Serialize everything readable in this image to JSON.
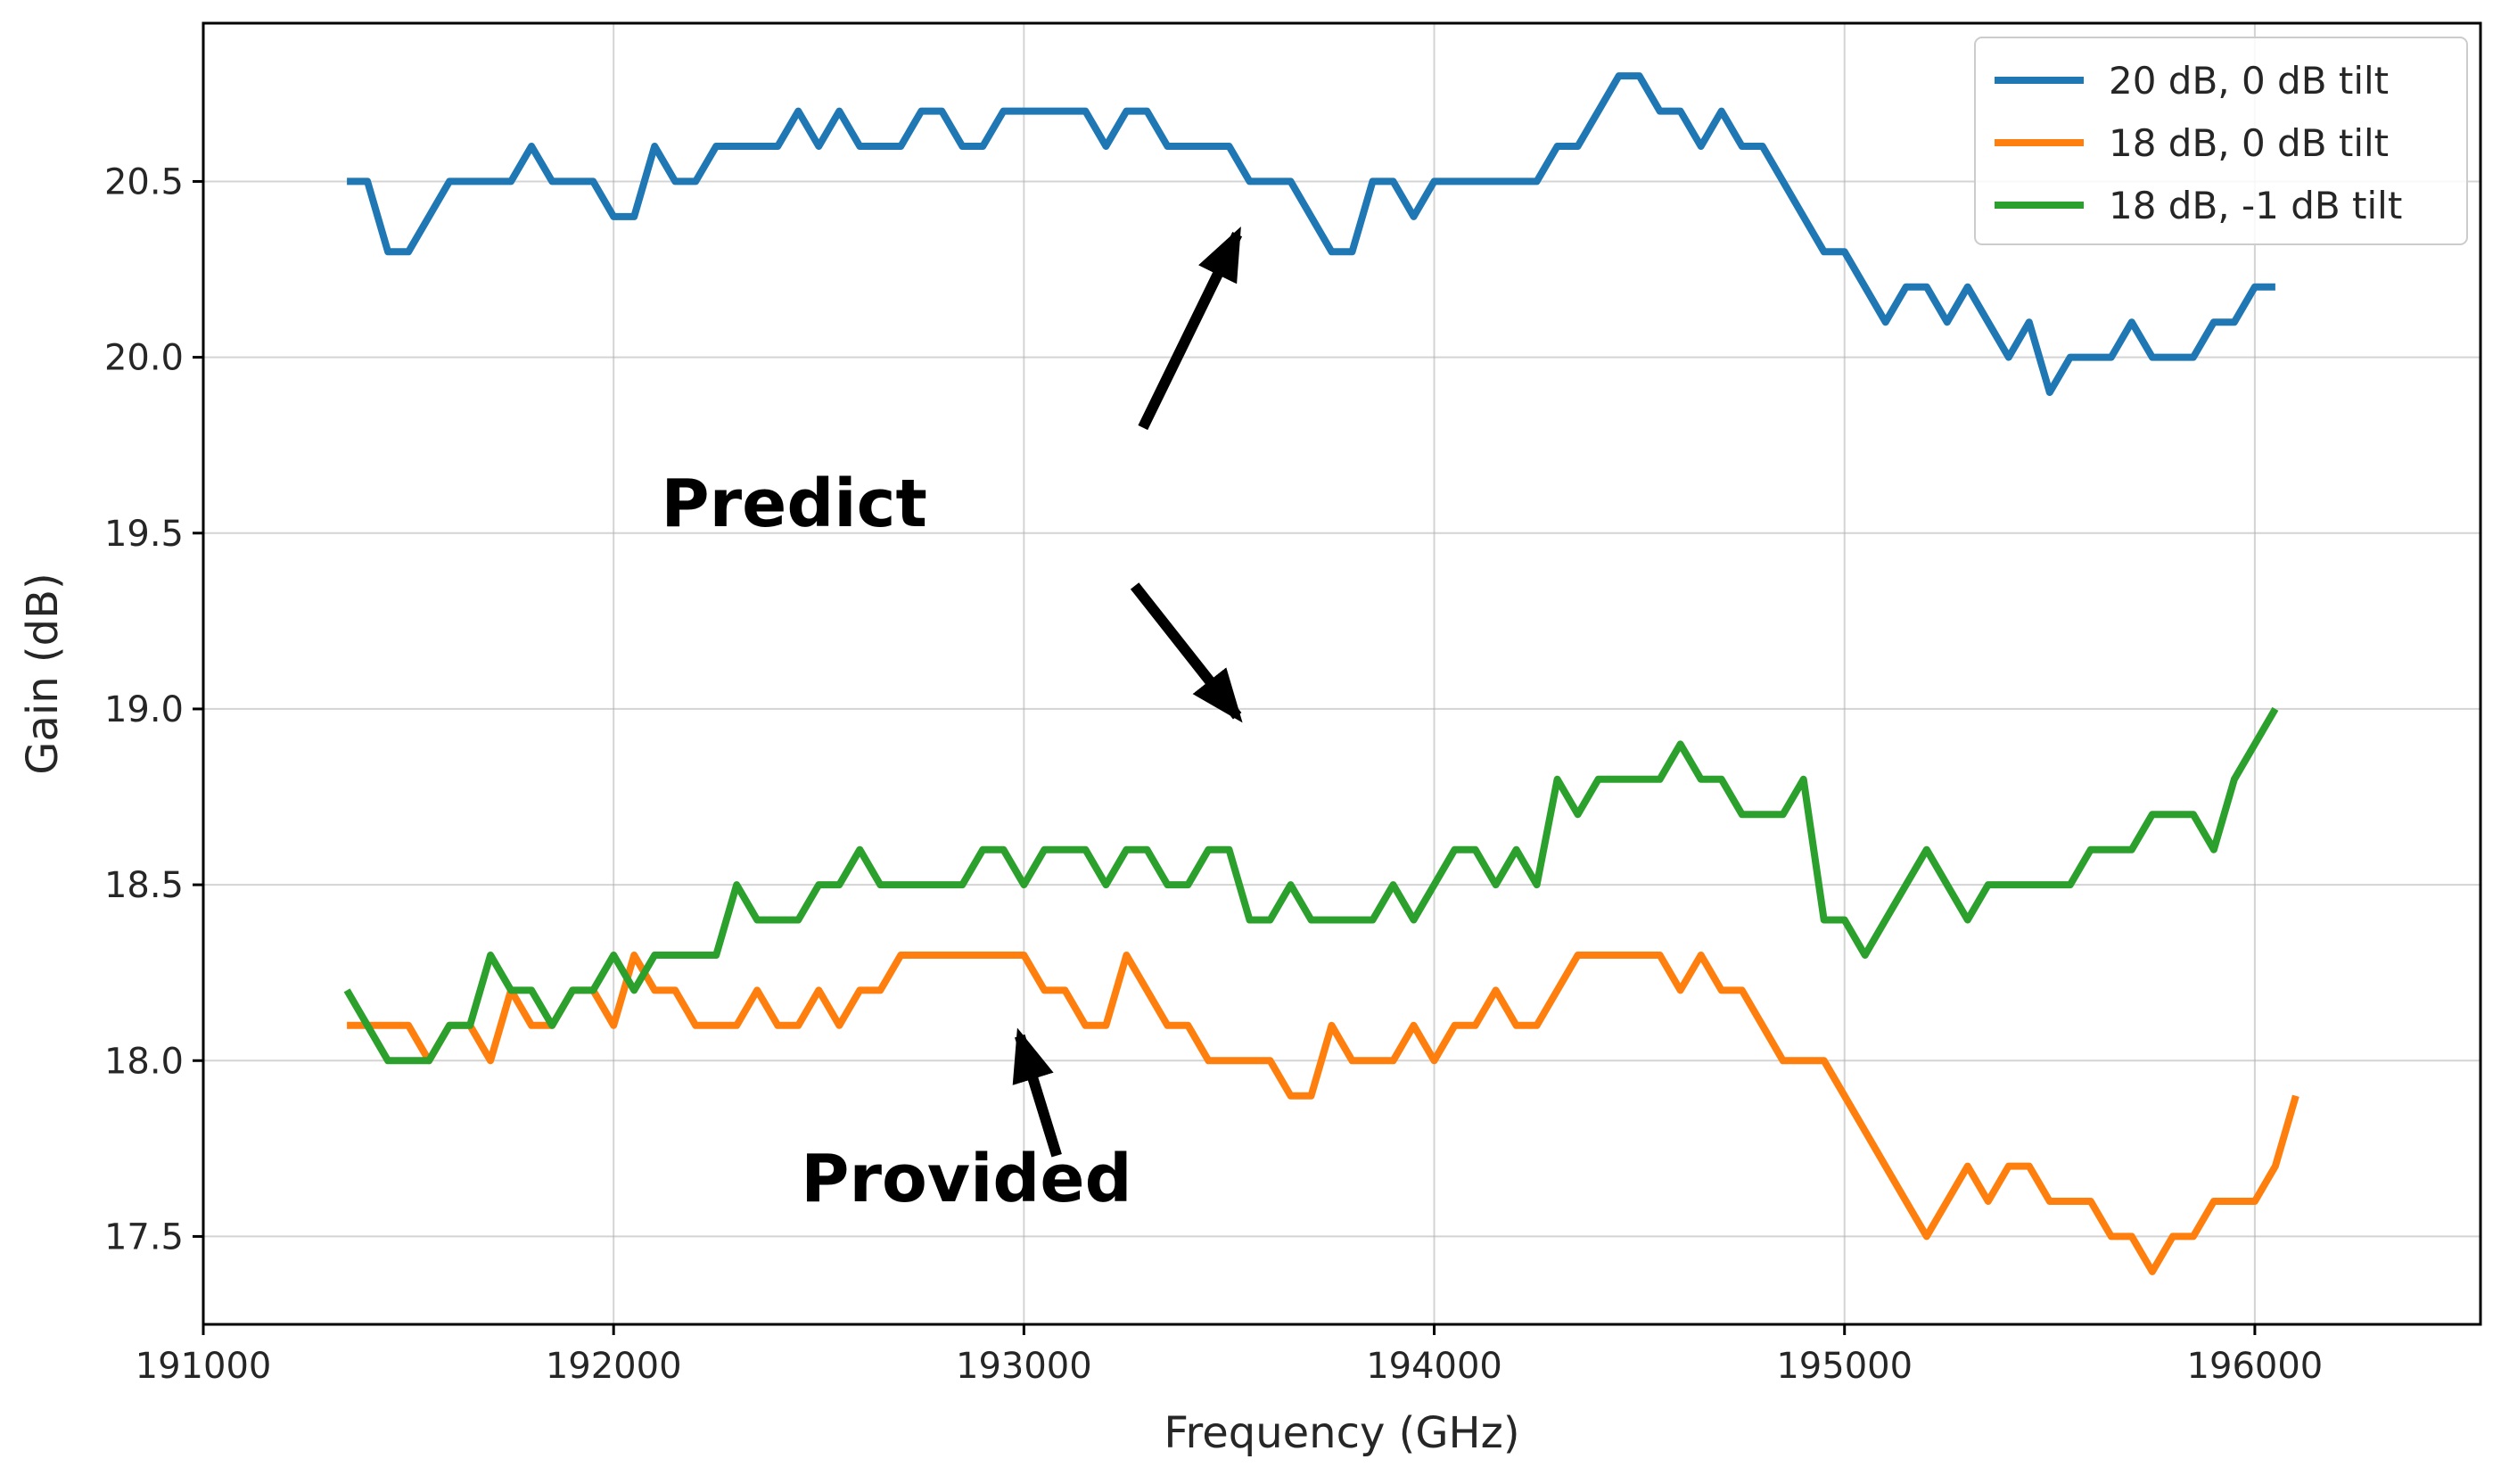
{
  "chart_data": {
    "type": "line",
    "xlabel": "Frequency (GHz)",
    "ylabel": "Gain (dB)",
    "xlim": [
      191000,
      196550
    ],
    "ylim": [
      17.25,
      20.95
    ],
    "xticks": [
      191000,
      192000,
      193000,
      194000,
      195000,
      196000
    ],
    "yticks": [
      17.5,
      18.0,
      18.5,
      19.0,
      19.5,
      20.0,
      20.5
    ],
    "grid": true,
    "legend_position": "top-right",
    "x_start": 191350,
    "x_step": 50,
    "series": [
      {
        "name": "20 dB, 0 dB tilt",
        "color": "#1f77b4",
        "values": [
          20.5,
          20.5,
          20.3,
          20.3,
          20.4,
          20.5,
          20.5,
          20.5,
          20.5,
          20.6,
          20.5,
          20.5,
          20.5,
          20.4,
          20.4,
          20.6,
          20.5,
          20.5,
          20.6,
          20.6,
          20.6,
          20.6,
          20.7,
          20.6,
          20.7,
          20.6,
          20.6,
          20.6,
          20.7,
          20.7,
          20.6,
          20.6,
          20.7,
          20.7,
          20.7,
          20.7,
          20.7,
          20.6,
          20.7,
          20.7,
          20.6,
          20.6,
          20.6,
          20.6,
          20.5,
          20.5,
          20.5,
          20.4,
          20.3,
          20.3,
          20.5,
          20.5,
          20.4,
          20.5,
          20.5,
          20.5,
          20.5,
          20.5,
          20.5,
          20.6,
          20.6,
          20.7,
          20.8,
          20.8,
          20.7,
          20.7,
          20.6,
          20.7,
          20.6,
          20.6,
          20.5,
          20.4,
          20.3,
          20.3,
          20.2,
          20.1,
          20.2,
          20.2,
          20.1,
          20.2,
          20.1,
          20.0,
          20.1,
          19.9,
          20.0,
          20.0,
          20.0,
          20.1,
          20.0,
          20.0,
          20.0,
          20.1,
          20.1,
          20.2,
          20.2
        ]
      },
      {
        "name": "18 dB, 0 dB tilt",
        "color": "#ff7f0e",
        "values": [
          18.1,
          18.1,
          18.1,
          18.1,
          18.0,
          18.1,
          18.1,
          18.0,
          18.2,
          18.1,
          18.1,
          18.2,
          18.2,
          18.1,
          18.3,
          18.2,
          18.2,
          18.1,
          18.1,
          18.1,
          18.2,
          18.1,
          18.1,
          18.2,
          18.1,
          18.2,
          18.2,
          18.3,
          18.3,
          18.3,
          18.3,
          18.3,
          18.3,
          18.3,
          18.2,
          18.2,
          18.1,
          18.1,
          18.3,
          18.2,
          18.1,
          18.1,
          18.0,
          18.0,
          18.0,
          18.0,
          17.9,
          17.9,
          18.1,
          18.0,
          18.0,
          18.0,
          18.1,
          18.0,
          18.1,
          18.1,
          18.2,
          18.1,
          18.1,
          18.2,
          18.3,
          18.3,
          18.3,
          18.3,
          18.3,
          18.2,
          18.3,
          18.2,
          18.2,
          18.1,
          18.0,
          18.0,
          18.0,
          17.9,
          17.8,
          17.7,
          17.6,
          17.5,
          17.6,
          17.7,
          17.6,
          17.7,
          17.7,
          17.6,
          17.6,
          17.6,
          17.5,
          17.5,
          17.4,
          17.5,
          17.5,
          17.6,
          17.6,
          17.6,
          17.7,
          17.9
        ]
      },
      {
        "name": "18 dB, -1 dB tilt",
        "color": "#2ca02c",
        "values": [
          18.2,
          18.1,
          18.0,
          18.0,
          18.0,
          18.1,
          18.1,
          18.3,
          18.2,
          18.2,
          18.1,
          18.2,
          18.2,
          18.3,
          18.2,
          18.3,
          18.3,
          18.3,
          18.3,
          18.5,
          18.4,
          18.4,
          18.4,
          18.5,
          18.5,
          18.6,
          18.5,
          18.5,
          18.5,
          18.5,
          18.5,
          18.6,
          18.6,
          18.5,
          18.6,
          18.6,
          18.6,
          18.5,
          18.6,
          18.6,
          18.5,
          18.5,
          18.6,
          18.6,
          18.4,
          18.4,
          18.5,
          18.4,
          18.4,
          18.4,
          18.4,
          18.5,
          18.4,
          18.5,
          18.6,
          18.6,
          18.5,
          18.6,
          18.5,
          18.8,
          18.7,
          18.8,
          18.8,
          18.8,
          18.8,
          18.9,
          18.8,
          18.8,
          18.7,
          18.7,
          18.7,
          18.8,
          18.4,
          18.4,
          18.3,
          18.4,
          18.5,
          18.6,
          18.5,
          18.4,
          18.5,
          18.5,
          18.5,
          18.5,
          18.5,
          18.6,
          18.6,
          18.6,
          18.7,
          18.7,
          18.7,
          18.6,
          18.8,
          18.9,
          19.0
        ]
      }
    ],
    "annotations": [
      {
        "text": "Predict",
        "text_at": [
          192440,
          19.52
        ],
        "arrows": [
          {
            "from": [
              193290,
              19.8
            ],
            "to": [
              193520,
              20.35
            ]
          },
          {
            "from": [
              193270,
              19.35
            ],
            "to": [
              193520,
              18.98
            ]
          }
        ]
      },
      {
        "text": "Provided",
        "text_at": [
          192860,
          17.6
        ],
        "arrows": [
          {
            "from": [
              193080,
              17.73
            ],
            "to": [
              192990,
              18.07
            ]
          }
        ]
      }
    ]
  }
}
